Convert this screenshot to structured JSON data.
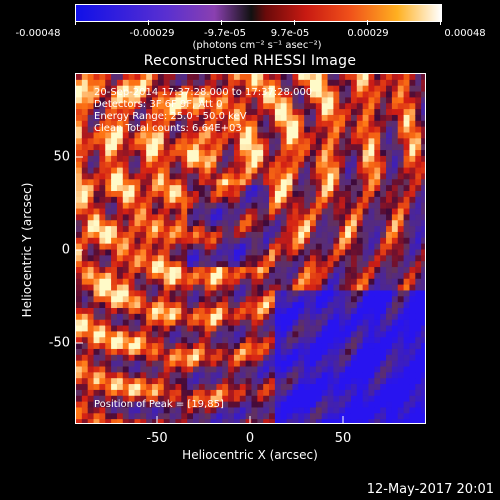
{
  "colorbar": {
    "labels": [
      "-0.00048",
      "-0.00029",
      "-9.7e-05",
      "9.7e-05",
      "0.00029",
      "0.00048"
    ],
    "unit_text": "(photons cm⁻² s⁻¹ asec⁻²)"
  },
  "title": "Reconstructed RHESSI Image",
  "annotations": {
    "time_range": "20-Sep-2014 17:37:28.000 to 17:37:28.000",
    "detectors": "Detectors: 3F 6F 9F, Att 0",
    "energy_range": "Energy Range: 25.0 - 50.0 keV",
    "method_counts": "Clean    Total counts: 6.64E+03",
    "peak_position": "Position of Peak = [19,85]"
  },
  "axes": {
    "xlabel": "Heliocentric X (arcsec)",
    "ylabel": "Heliocentric Y (arcsec)",
    "xticks": [
      "-50",
      "0",
      "50"
    ],
    "yticks": [
      "50",
      "0",
      "-50"
    ]
  },
  "footer": "12-May-2017 20:01",
  "colors": {
    "negative_low": "#1010e8",
    "negative_mid": "#6a35c0",
    "zero": "#000000",
    "positive_mid": "#d02010",
    "positive_high": "#ffffff"
  }
}
